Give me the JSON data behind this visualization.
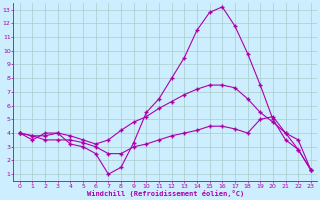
{
  "xlabel": "Windchill (Refroidissement éolien,°C)",
  "xlim": [
    -0.5,
    23.5
  ],
  "ylim": [
    0.5,
    13.5
  ],
  "yticks": [
    1,
    2,
    3,
    4,
    5,
    6,
    7,
    8,
    9,
    10,
    11,
    12,
    13
  ],
  "xticks": [
    0,
    1,
    2,
    3,
    4,
    5,
    6,
    7,
    8,
    9,
    10,
    11,
    12,
    13,
    14,
    15,
    16,
    17,
    18,
    19,
    20,
    21,
    22,
    23
  ],
  "bg_color": "#cceeff",
  "grid_color": "#aacccc",
  "line_color": "#aa00aa",
  "line1_x": [
    0,
    1,
    2,
    3,
    4,
    5,
    6,
    7,
    8,
    9,
    10,
    11,
    12,
    13,
    14,
    15,
    16,
    17,
    18,
    19,
    20,
    21,
    22,
    23
  ],
  "line1_y": [
    4.0,
    3.5,
    4.0,
    4.0,
    3.2,
    3.0,
    2.5,
    1.0,
    1.5,
    3.3,
    5.5,
    6.5,
    8.0,
    9.5,
    11.5,
    12.8,
    13.2,
    11.8,
    9.8,
    7.5,
    5.0,
    3.5,
    2.8,
    1.3
  ],
  "line2_x": [
    0,
    1,
    2,
    3,
    4,
    5,
    6,
    7,
    8,
    9,
    10,
    11,
    12,
    13,
    14,
    15,
    16,
    17,
    18,
    19,
    20,
    21,
    22,
    23
  ],
  "line2_y": [
    4.0,
    3.8,
    3.8,
    4.0,
    3.8,
    3.5,
    3.2,
    3.5,
    4.2,
    4.8,
    5.2,
    5.8,
    6.3,
    6.8,
    7.2,
    7.5,
    7.5,
    7.3,
    6.5,
    5.5,
    4.8,
    4.0,
    3.5,
    1.3
  ],
  "line3_x": [
    0,
    1,
    2,
    3,
    4,
    5,
    6,
    7,
    8,
    9,
    10,
    11,
    12,
    13,
    14,
    15,
    16,
    17,
    18,
    19,
    20,
    21,
    22,
    23
  ],
  "line3_y": [
    4.0,
    3.8,
    3.5,
    3.5,
    3.5,
    3.3,
    3.0,
    2.5,
    2.5,
    3.0,
    3.2,
    3.5,
    3.8,
    4.0,
    4.2,
    4.5,
    4.5,
    4.3,
    4.0,
    5.0,
    5.2,
    4.0,
    2.8,
    1.3
  ]
}
